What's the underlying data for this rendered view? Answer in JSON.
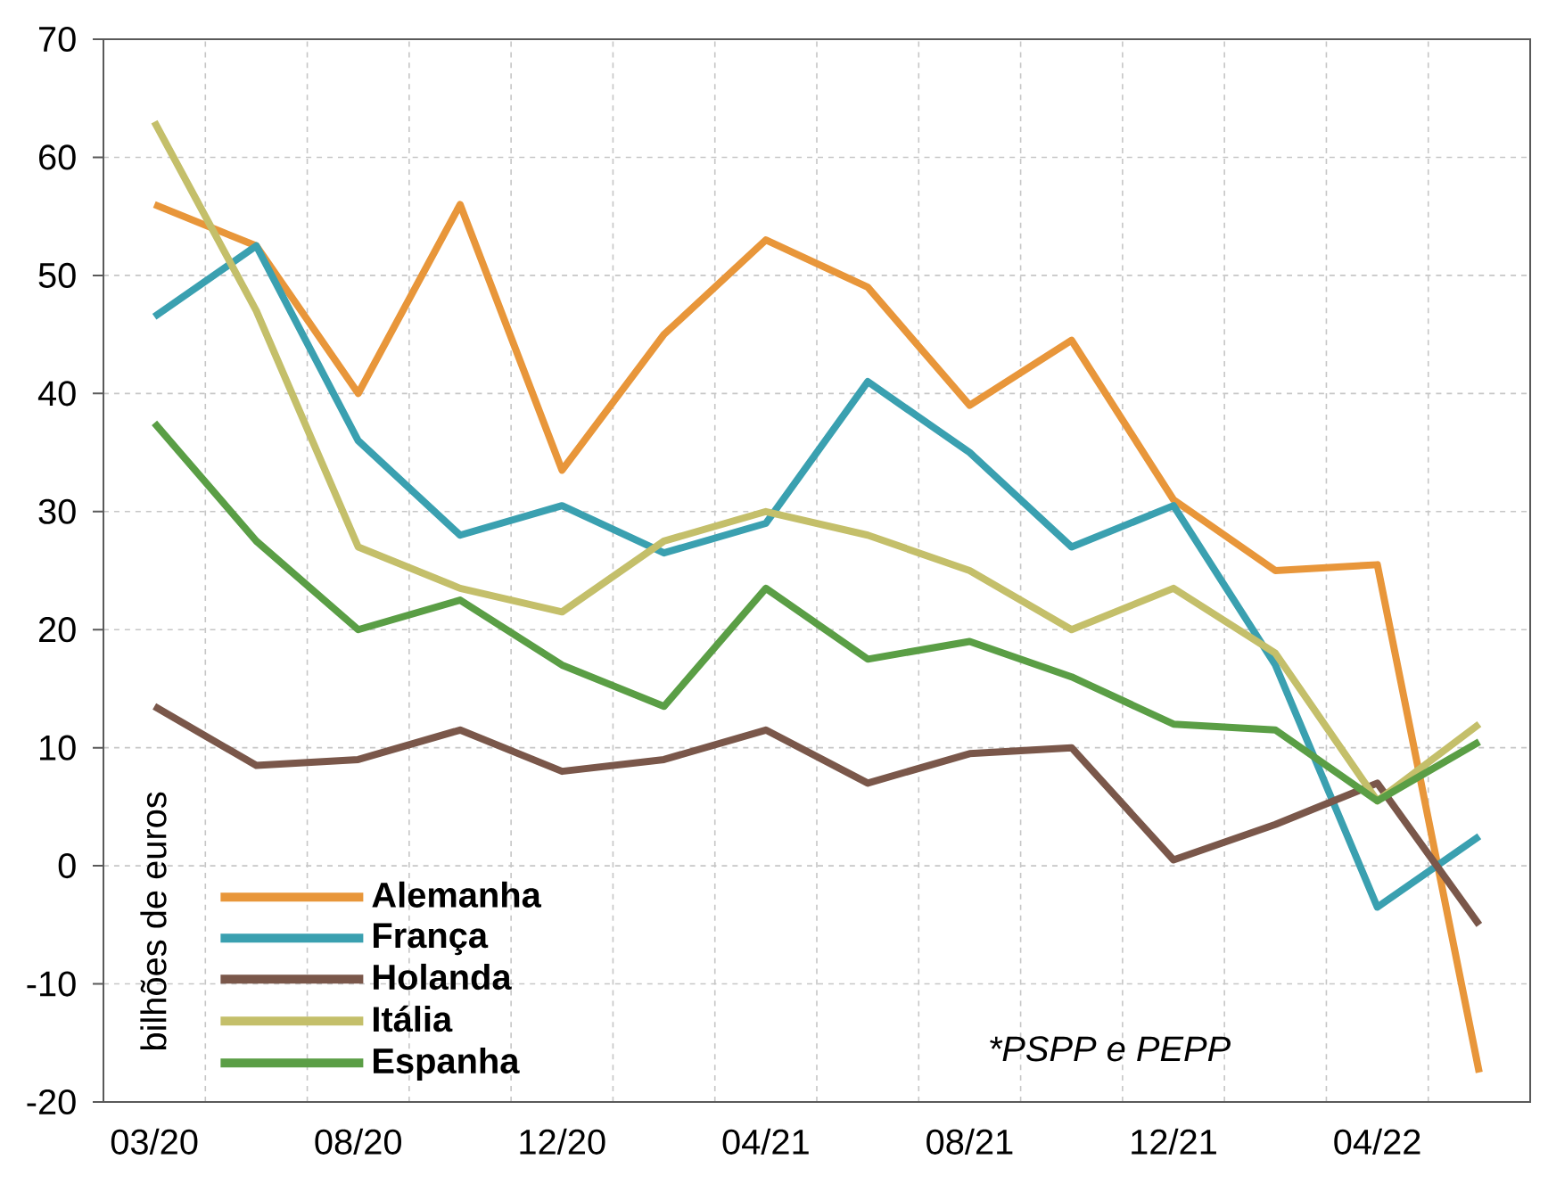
{
  "chart_data": {
    "type": "line",
    "ylabel": "bilhões de euros",
    "annotations": [
      "*PSPP e PEPP"
    ],
    "categories": [
      "03/20",
      null,
      "08/20",
      null,
      "12/20",
      null,
      "04/21",
      null,
      "08/21",
      null,
      "12/21",
      null,
      "04/22",
      null
    ],
    "ylim": [
      -20,
      70
    ],
    "yticks": [
      -20,
      -10,
      0,
      10,
      20,
      30,
      40,
      50,
      60,
      70
    ],
    "grid": true,
    "legend": "bottom left",
    "marker": "none",
    "line_style": "solid",
    "series": [
      {
        "name": "Alemanha",
        "color": "#e8963a",
        "values": [
          56,
          52.5,
          40,
          56,
          33.5,
          45,
          53,
          49,
          39,
          44.5,
          31,
          25,
          25.5,
          -17.5
        ]
      },
      {
        "name": "França",
        "color": "#3aa0b0",
        "values": [
          46.5,
          52.5,
          36,
          28,
          30.5,
          26.5,
          29,
          41,
          35,
          27,
          30.5,
          17,
          -3.5,
          2.5
        ]
      },
      {
        "name": "Holanda",
        "color": "#7a574a",
        "values": [
          13.5,
          8.5,
          9,
          11.5,
          8,
          9,
          11.5,
          7,
          9.5,
          10,
          0.5,
          3.5,
          7,
          -5
        ]
      },
      {
        "name": "Itália",
        "color": "#c4bf6a",
        "values": [
          63,
          47,
          27,
          23.5,
          21.5,
          27.5,
          30,
          28,
          25,
          20,
          23.5,
          18,
          5.5,
          12
        ]
      },
      {
        "name": "Espanha",
        "color": "#5a9e45",
        "values": [
          37.5,
          27.5,
          20,
          22.5,
          17,
          13.5,
          23.5,
          17.5,
          19,
          16,
          12,
          11.5,
          5.5,
          10.5
        ]
      }
    ]
  }
}
